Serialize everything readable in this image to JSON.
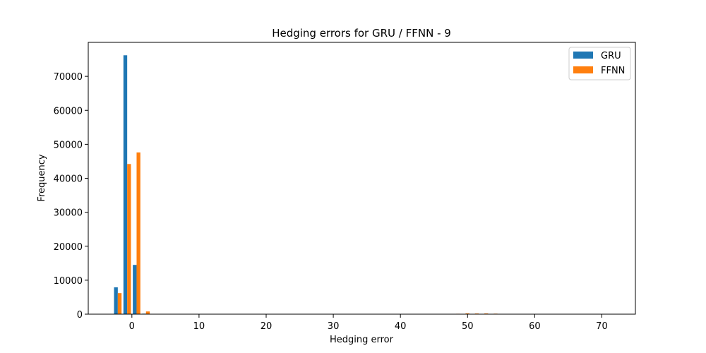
{
  "chart_data": {
    "type": "bar",
    "title": "Hedging errors for GRU / FFNN - 9",
    "xlabel": "Hedging error",
    "ylabel": "Frequency",
    "xlim": [
      -6.5,
      75.0
    ],
    "ylim": [
      0,
      80000
    ],
    "xticks": [
      0,
      10,
      20,
      30,
      40,
      50,
      60,
      70
    ],
    "yticks": [
      0,
      10000,
      20000,
      30000,
      40000,
      50000,
      60000,
      70000
    ],
    "legend_position": "top-right",
    "grid": false,
    "bin_edges": [
      -2.8,
      -1.4,
      0.0,
      1.4,
      2.8,
      4.2,
      5.6,
      7.0,
      8.4,
      9.8,
      11.2,
      12.6,
      14.0,
      15.4,
      16.8,
      18.2,
      19.6,
      21.0,
      22.4,
      23.8,
      25.2,
      26.6,
      28.0,
      29.4,
      30.8,
      32.2,
      33.6,
      35.0,
      36.4,
      37.8,
      39.2,
      40.6,
      42.0,
      43.4,
      44.8,
      46.2,
      47.6,
      49.0,
      50.4,
      51.8,
      53.2,
      54.6,
      56.0,
      57.4,
      58.8,
      60.2,
      61.6,
      63.0,
      64.4,
      65.8,
      67.2,
      68.6,
      70.0,
      71.4
    ],
    "series": [
      {
        "name": "GRU",
        "color": "#1f77b4",
        "values": [
          7900,
          76200,
          14500,
          150,
          20,
          0,
          0,
          0,
          0,
          0,
          0,
          0,
          0,
          0,
          0,
          0,
          0,
          0,
          0,
          0,
          0,
          0,
          0,
          0,
          0,
          0,
          0,
          0,
          0,
          0,
          0,
          0,
          0,
          0,
          0,
          0,
          0,
          0,
          0,
          0,
          0,
          0,
          0,
          0,
          0,
          0,
          0,
          0,
          0,
          0,
          0,
          0,
          0
        ]
      },
      {
        "name": "FFNN",
        "color": "#ff7f0e",
        "values": [
          6200,
          44200,
          47600,
          800,
          20,
          0,
          0,
          0,
          0,
          0,
          0,
          0,
          0,
          0,
          0,
          0,
          0,
          0,
          0,
          0,
          0,
          0,
          0,
          0,
          0,
          0,
          0,
          0,
          0,
          0,
          0,
          0,
          0,
          0,
          0,
          0,
          120,
          250,
          200,
          220,
          150,
          0,
          0,
          0,
          0,
          0,
          0,
          0,
          0,
          0,
          0,
          0,
          0
        ]
      }
    ]
  }
}
